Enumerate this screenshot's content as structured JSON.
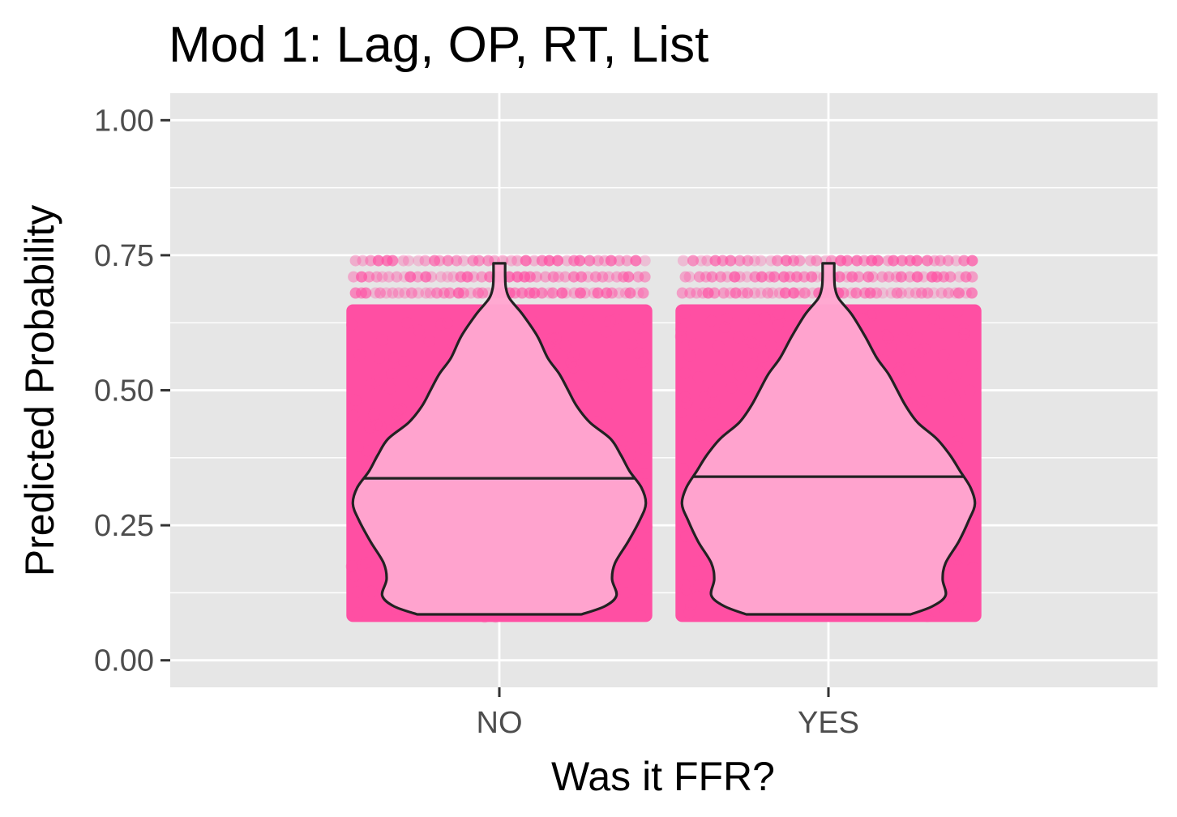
{
  "chart_data": {
    "type": "violin",
    "title": "Mod 1: Lag, OP, RT, List",
    "xlabel": "Was it FFR?",
    "ylabel": "Predicted Probability",
    "categories": [
      "NO",
      "YES"
    ],
    "ylim": [
      -0.05,
      1.05
    ],
    "yticks": [
      0.0,
      0.25,
      0.5,
      0.75,
      1.0
    ],
    "ytick_labels": [
      "0.00",
      "0.25",
      "0.50",
      "0.75",
      "1.00"
    ],
    "grid": true,
    "background": "#e6e6e6",
    "point_color": "#ff4fa3",
    "violin_fill": "#ffa6d0",
    "violin_stroke": "#222222",
    "points": {
      "dense_range": [
        0.08,
        0.65
      ],
      "sparse_levels": [
        0.68,
        0.71,
        0.74
      ]
    },
    "series": [
      {
        "category": "NO",
        "median": 0.337,
        "density": [
          [
            0.085,
            0.56
          ],
          [
            0.1,
            0.72
          ],
          [
            0.12,
            0.8
          ],
          [
            0.15,
            0.77
          ],
          [
            0.18,
            0.79
          ],
          [
            0.22,
            0.88
          ],
          [
            0.26,
            0.96
          ],
          [
            0.29,
            1.0
          ],
          [
            0.32,
            0.97
          ],
          [
            0.35,
            0.89
          ],
          [
            0.38,
            0.83
          ],
          [
            0.41,
            0.76
          ],
          [
            0.44,
            0.62
          ],
          [
            0.47,
            0.53
          ],
          [
            0.5,
            0.47
          ],
          [
            0.53,
            0.41
          ],
          [
            0.56,
            0.33
          ],
          [
            0.6,
            0.26
          ],
          [
            0.64,
            0.16
          ],
          [
            0.67,
            0.07
          ],
          [
            0.69,
            0.045
          ],
          [
            0.71,
            0.04
          ],
          [
            0.735,
            0.04
          ]
        ]
      },
      {
        "category": "YES",
        "median": 0.34,
        "density": [
          [
            0.085,
            0.56
          ],
          [
            0.1,
            0.71
          ],
          [
            0.12,
            0.8
          ],
          [
            0.15,
            0.78
          ],
          [
            0.18,
            0.8
          ],
          [
            0.22,
            0.89
          ],
          [
            0.26,
            0.96
          ],
          [
            0.29,
            1.0
          ],
          [
            0.32,
            0.97
          ],
          [
            0.35,
            0.9
          ],
          [
            0.38,
            0.83
          ],
          [
            0.41,
            0.74
          ],
          [
            0.44,
            0.61
          ],
          [
            0.47,
            0.53
          ],
          [
            0.5,
            0.47
          ],
          [
            0.53,
            0.41
          ],
          [
            0.56,
            0.33
          ],
          [
            0.6,
            0.25
          ],
          [
            0.64,
            0.16
          ],
          [
            0.67,
            0.07
          ],
          [
            0.69,
            0.045
          ],
          [
            0.71,
            0.04
          ],
          [
            0.735,
            0.04
          ]
        ]
      }
    ]
  }
}
